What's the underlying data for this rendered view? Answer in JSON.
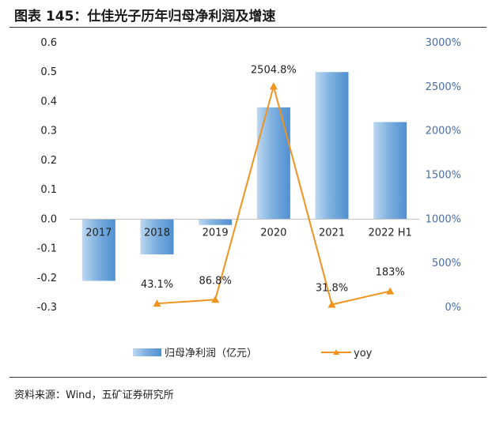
{
  "figure": {
    "title": "图表 145：仕佳光子历年归母净利润及增速",
    "source": "资料来源：Wind，五矿证券研究所"
  },
  "chart_data": {
    "type": "bar",
    "categories": [
      "2017",
      "2018",
      "2019",
      "2020",
      "2021",
      "2022 H1"
    ],
    "series": [
      {
        "name": "归母净利润（亿元）",
        "type": "bar",
        "axis": "left",
        "values": [
          -0.21,
          -0.12,
          -0.02,
          0.38,
          0.5,
          0.33
        ]
      },
      {
        "name": "yoy",
        "type": "line",
        "axis": "right",
        "values": [
          null,
          43.1,
          86.8,
          2504.8,
          31.8,
          183.0
        ]
      }
    ],
    "data_labels": [
      "",
      "43.1%",
      "86.8%",
      "2504.8%",
      "31.8%",
      "183%"
    ],
    "y_left": {
      "min": -0.3,
      "max": 0.6,
      "step": 0.1,
      "ticks": [
        "0.6",
        "0.5",
        "0.4",
        "0.3",
        "0.2",
        "0.1",
        "0.0",
        "-0.1",
        "-0.2",
        "-0.3"
      ]
    },
    "y_right": {
      "min": 0,
      "max": 3000,
      "step": 500,
      "ticks": [
        "3000%",
        "2500%",
        "2000%",
        "1500%",
        "1000%",
        "500%",
        "0%"
      ]
    },
    "legend_position": "bottom",
    "colors": {
      "bar": "#5b9bd5",
      "bar_light": "#bcd7f0",
      "line": "#f0921e"
    },
    "grid": false
  }
}
